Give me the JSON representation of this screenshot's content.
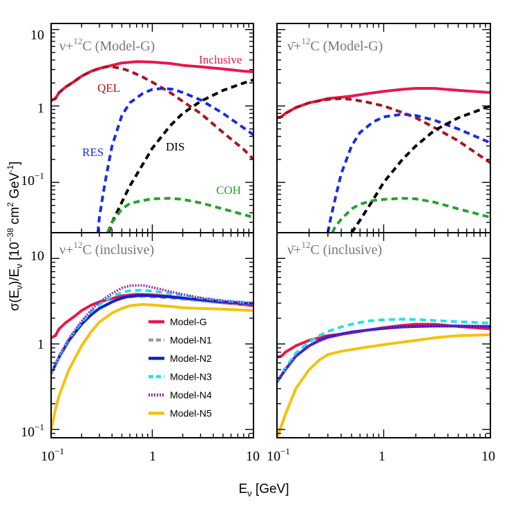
{
  "chart_data": [
    {
      "type": "line",
      "panel": "top-left",
      "title": "ν+¹²C (Model-G)",
      "title_parts": {
        "pre": "ν+",
        "sup": "12",
        "post": "C (Model-G)"
      },
      "xscale": "log",
      "yscale": "log",
      "xlim": [
        0.1,
        10
      ],
      "ylim": [
        0.022,
        12
      ],
      "series": [
        {
          "name": "Inclusive",
          "color": "#e8174a",
          "dash": "solid",
          "x": [
            0.1,
            0.11,
            0.12,
            0.14,
            0.17,
            0.2,
            0.25,
            0.3,
            0.4,
            0.5,
            0.7,
            1,
            1.5,
            2,
            3,
            5,
            8,
            10
          ],
          "y": [
            1.18,
            1.25,
            1.5,
            1.78,
            2.1,
            2.45,
            2.85,
            3.1,
            3.4,
            3.65,
            3.8,
            3.75,
            3.6,
            3.4,
            3.25,
            3.05,
            2.85,
            2.8
          ]
        },
        {
          "name": "QEL",
          "color": "#a8161a",
          "dash": "dash",
          "x": [
            0.1,
            0.11,
            0.12,
            0.14,
            0.17,
            0.2,
            0.25,
            0.3,
            0.35,
            0.4,
            0.5,
            0.6,
            0.8,
            1,
            1.5,
            2,
            3,
            5,
            8,
            10
          ],
          "y": [
            1.18,
            1.25,
            1.5,
            1.78,
            2.1,
            2.45,
            2.85,
            3.1,
            3.25,
            3.25,
            3.1,
            2.85,
            2.4,
            2.05,
            1.5,
            1.15,
            0.8,
            0.45,
            0.27,
            0.2
          ]
        },
        {
          "name": "RES",
          "color": "#1a2be8",
          "dash": "dash",
          "x": [
            0.29,
            0.3,
            0.32,
            0.35,
            0.4,
            0.5,
            0.6,
            0.8,
            1,
            1.3,
            1.6,
            2,
            3,
            5,
            10
          ],
          "y": [
            0.022,
            0.035,
            0.06,
            0.12,
            0.3,
            0.75,
            1.1,
            1.45,
            1.65,
            1.7,
            1.65,
            1.5,
            1.2,
            0.8,
            0.42
          ]
        },
        {
          "name": "DIS",
          "color": "#000000",
          "dash": "dash",
          "x": [
            0.37,
            0.4,
            0.5,
            0.6,
            0.8,
            1,
            1.5,
            2,
            3,
            5,
            8,
            10
          ],
          "y": [
            0.022,
            0.03,
            0.055,
            0.09,
            0.17,
            0.28,
            0.55,
            0.8,
            1.15,
            1.6,
            2.0,
            2.2
          ]
        },
        {
          "name": "COH",
          "color": "#26a22e",
          "dash": "dash",
          "x": [
            0.36,
            0.4,
            0.5,
            0.6,
            0.8,
            1,
            1.5,
            2,
            3,
            5,
            10
          ],
          "y": [
            0.022,
            0.03,
            0.045,
            0.053,
            0.058,
            0.061,
            0.062,
            0.06,
            0.054,
            0.045,
            0.035
          ]
        }
      ],
      "annotations": [
        {
          "text": "Inclusive",
          "color": "#e8174a"
        },
        {
          "text": "QEL",
          "color": "#a8161a"
        },
        {
          "text": "RES",
          "color": "#1a2be8"
        },
        {
          "text": "DIS",
          "color": "#000000"
        },
        {
          "text": "COH",
          "color": "#26a22e"
        }
      ]
    },
    {
      "type": "line",
      "panel": "top-right",
      "title": "ν̄+¹²C (Model-G)",
      "title_parts": {
        "pre": "ν̄+",
        "sup": "12",
        "post": "C (Model-G)"
      },
      "xscale": "log",
      "yscale": "log",
      "xlim": [
        0.1,
        10
      ],
      "ylim": [
        0.022,
        12
      ],
      "series": [
        {
          "name": "Inclusive",
          "color": "#e8174a",
          "dash": "solid",
          "x": [
            0.1,
            0.11,
            0.12,
            0.15,
            0.2,
            0.3,
            0.4,
            0.5,
            0.7,
            1,
            1.5,
            2,
            3,
            5,
            10
          ],
          "y": [
            0.7,
            0.72,
            0.8,
            0.95,
            1.1,
            1.25,
            1.3,
            1.35,
            1.45,
            1.55,
            1.65,
            1.7,
            1.7,
            1.6,
            1.5
          ]
        },
        {
          "name": "QEL",
          "color": "#a8161a",
          "dash": "dash",
          "x": [
            0.1,
            0.11,
            0.12,
            0.15,
            0.2,
            0.3,
            0.4,
            0.5,
            0.7,
            1,
            1.5,
            2,
            3,
            5,
            10
          ],
          "y": [
            0.7,
            0.72,
            0.8,
            0.95,
            1.1,
            1.22,
            1.25,
            1.22,
            1.12,
            1.0,
            0.82,
            0.7,
            0.52,
            0.35,
            0.18
          ]
        },
        {
          "name": "RES",
          "color": "#1a2be8",
          "dash": "dash",
          "x": [
            0.3,
            0.32,
            0.35,
            0.4,
            0.5,
            0.6,
            0.8,
            1,
            1.5,
            2,
            3,
            5,
            10
          ],
          "y": [
            0.022,
            0.035,
            0.06,
            0.13,
            0.3,
            0.45,
            0.62,
            0.72,
            0.78,
            0.75,
            0.65,
            0.5,
            0.33
          ]
        },
        {
          "name": "DIS",
          "color": "#000000",
          "dash": "dash",
          "x": [
            0.5,
            0.6,
            0.8,
            1,
            1.5,
            2,
            3,
            5,
            10
          ],
          "y": [
            0.022,
            0.032,
            0.06,
            0.1,
            0.2,
            0.3,
            0.48,
            0.7,
            1.0
          ]
        },
        {
          "name": "COH",
          "color": "#26a22e",
          "dash": "dash",
          "x": [
            0.33,
            0.35,
            0.4,
            0.5,
            0.6,
            0.8,
            1,
            1.5,
            2,
            3,
            5,
            10
          ],
          "y": [
            0.022,
            0.026,
            0.033,
            0.045,
            0.052,
            0.058,
            0.06,
            0.062,
            0.061,
            0.055,
            0.045,
            0.035
          ]
        }
      ]
    },
    {
      "type": "line",
      "panel": "bottom-left",
      "title": "ν+¹²C (inclusive)",
      "title_parts": {
        "pre": "ν+",
        "sup": "12",
        "post": "C (inclusive)"
      },
      "xscale": "log",
      "yscale": "log",
      "xlim": [
        0.1,
        10
      ],
      "ylim": [
        0.08,
        20
      ],
      "ylabel": "σ(Eν)/Eν [10⁻³⁸ cm² GeV⁻¹]",
      "series": [
        {
          "name": "Model-G",
          "color": "#e8174a",
          "dash": "solid",
          "x": [
            0.1,
            0.11,
            0.12,
            0.14,
            0.17,
            0.2,
            0.25,
            0.3,
            0.4,
            0.5,
            0.7,
            1,
            1.5,
            2,
            3,
            5,
            10
          ],
          "y": [
            1.18,
            1.25,
            1.5,
            1.78,
            2.1,
            2.45,
            2.85,
            3.1,
            3.4,
            3.65,
            3.8,
            3.75,
            3.6,
            3.4,
            3.25,
            3.05,
            2.8
          ]
        },
        {
          "name": "Model-N1",
          "color": "#9a9a9a",
          "dash": "dash",
          "x": [
            0.1,
            0.12,
            0.15,
            0.2,
            0.25,
            0.3,
            0.4,
            0.5,
            0.6,
            0.8,
            1,
            1.5,
            2,
            3,
            5,
            10
          ],
          "y": [
            0.45,
            0.7,
            1.1,
            1.7,
            2.2,
            2.6,
            3.1,
            3.4,
            3.55,
            3.6,
            3.55,
            3.45,
            3.35,
            3.2,
            3.0,
            2.9
          ]
        },
        {
          "name": "Model-N2",
          "color": "#0a22d8",
          "dash": "solid",
          "x": [
            0.1,
            0.12,
            0.15,
            0.2,
            0.25,
            0.3,
            0.4,
            0.5,
            0.6,
            0.8,
            1,
            1.5,
            2,
            3,
            5,
            10
          ],
          "y": [
            0.45,
            0.7,
            1.1,
            1.7,
            2.2,
            2.6,
            3.1,
            3.45,
            3.6,
            3.7,
            3.65,
            3.55,
            3.45,
            3.3,
            3.1,
            2.95
          ]
        },
        {
          "name": "Model-N3",
          "color": "#25e0ec",
          "dash": "dash",
          "x": [
            0.1,
            0.12,
            0.15,
            0.2,
            0.25,
            0.3,
            0.4,
            0.5,
            0.6,
            0.8,
            1,
            1.5,
            2,
            3,
            5,
            10
          ],
          "y": [
            0.45,
            0.72,
            1.15,
            1.8,
            2.4,
            2.9,
            3.6,
            4.0,
            4.2,
            4.25,
            4.15,
            3.9,
            3.7,
            3.45,
            3.2,
            3.0
          ]
        },
        {
          "name": "Model-N4",
          "color": "#a020a8",
          "dash": "dot",
          "x": [
            0.1,
            0.12,
            0.15,
            0.2,
            0.25,
            0.3,
            0.4,
            0.5,
            0.6,
            0.8,
            1,
            1.5,
            2,
            3,
            5,
            10
          ],
          "y": [
            0.45,
            0.72,
            1.15,
            1.85,
            2.5,
            3.1,
            3.9,
            4.5,
            4.8,
            4.85,
            4.6,
            4.1,
            3.8,
            3.45,
            3.2,
            3.0
          ]
        },
        {
          "name": "Model-N5",
          "color": "#f5c10b",
          "dash": "solid",
          "x": [
            0.1,
            0.11,
            0.12,
            0.15,
            0.2,
            0.25,
            0.3,
            0.4,
            0.5,
            0.6,
            0.8,
            1,
            1.5,
            2,
            3,
            5,
            10
          ],
          "y": [
            0.1,
            0.17,
            0.25,
            0.5,
            0.95,
            1.4,
            1.8,
            2.3,
            2.6,
            2.8,
            2.9,
            2.85,
            2.75,
            2.65,
            2.6,
            2.55,
            2.45
          ]
        }
      ],
      "legend": [
        "Model-G",
        "Model-N1",
        "Model-N2",
        "Model-N3",
        "Model-N4",
        "Model-N5"
      ]
    },
    {
      "type": "line",
      "panel": "bottom-right",
      "title": "ν̄+¹²C (inclusive)",
      "title_parts": {
        "pre": "ν̄+",
        "sup": "12",
        "post": "C (inclusive)"
      },
      "xscale": "log",
      "yscale": "log",
      "xlim": [
        0.1,
        10
      ],
      "ylim": [
        0.08,
        20
      ],
      "xlabel": "Eν [GeV]",
      "series": [
        {
          "name": "Model-G",
          "color": "#e8174a",
          "dash": "solid",
          "x": [
            0.1,
            0.11,
            0.12,
            0.15,
            0.2,
            0.3,
            0.4,
            0.5,
            0.7,
            1,
            1.5,
            2,
            3,
            5,
            10
          ],
          "y": [
            0.7,
            0.72,
            0.8,
            0.95,
            1.1,
            1.25,
            1.3,
            1.35,
            1.45,
            1.55,
            1.65,
            1.7,
            1.7,
            1.6,
            1.5
          ]
        },
        {
          "name": "Model-N1",
          "color": "#9a9a9a",
          "dash": "dash",
          "x": [
            0.1,
            0.12,
            0.15,
            0.2,
            0.25,
            0.3,
            0.4,
            0.5,
            0.7,
            1,
            1.5,
            2,
            3,
            5,
            10
          ],
          "y": [
            0.36,
            0.5,
            0.72,
            0.95,
            1.1,
            1.2,
            1.3,
            1.38,
            1.45,
            1.52,
            1.58,
            1.6,
            1.62,
            1.62,
            1.6
          ]
        },
        {
          "name": "Model-N2",
          "color": "#0a22d8",
          "dash": "solid",
          "x": [
            0.1,
            0.12,
            0.15,
            0.2,
            0.25,
            0.3,
            0.4,
            0.5,
            0.7,
            1,
            1.5,
            2,
            3,
            5,
            10
          ],
          "y": [
            0.36,
            0.5,
            0.72,
            0.95,
            1.1,
            1.2,
            1.3,
            1.38,
            1.45,
            1.52,
            1.58,
            1.6,
            1.62,
            1.62,
            1.6
          ]
        },
        {
          "name": "Model-N3",
          "color": "#25e0ec",
          "dash": "dash",
          "x": [
            0.1,
            0.12,
            0.15,
            0.2,
            0.25,
            0.3,
            0.4,
            0.5,
            0.7,
            1,
            1.5,
            2,
            3,
            5,
            10
          ],
          "y": [
            0.37,
            0.52,
            0.78,
            1.05,
            1.25,
            1.4,
            1.58,
            1.7,
            1.85,
            1.92,
            1.95,
            1.93,
            1.88,
            1.82,
            1.75
          ]
        },
        {
          "name": "Model-N4",
          "color": "#a020a8",
          "dash": "dot",
          "x": [
            0.1,
            0.12,
            0.15,
            0.2,
            0.25,
            0.3,
            0.4,
            0.5,
            0.7,
            1,
            1.5,
            2,
            3,
            5,
            10
          ],
          "y": [
            0.36,
            0.5,
            0.72,
            0.95,
            1.08,
            1.18,
            1.28,
            1.36,
            1.44,
            1.52,
            1.58,
            1.6,
            1.62,
            1.62,
            1.6
          ]
        },
        {
          "name": "Model-N5",
          "color": "#f5c10b",
          "dash": "solid",
          "x": [
            0.1,
            0.11,
            0.12,
            0.15,
            0.2,
            0.25,
            0.3,
            0.4,
            0.5,
            0.7,
            1,
            1.5,
            2,
            3,
            5,
            10
          ],
          "y": [
            0.08,
            0.11,
            0.15,
            0.3,
            0.5,
            0.65,
            0.75,
            0.82,
            0.86,
            0.92,
            0.98,
            1.05,
            1.1,
            1.18,
            1.25,
            1.28
          ]
        }
      ]
    }
  ],
  "axes": {
    "x_ticks": [
      "10",
      "1",
      "10"
    ],
    "x_tick_first": {
      "base": "10",
      "exp": "−1"
    },
    "y_ticks_top": [
      "10",
      "1"
    ],
    "y_tick_minus1": {
      "base": "10",
      "exp": "−1"
    },
    "ylabel": {
      "pre": "σ(E",
      "sub1": "ν",
      "mid": ")/E",
      "sub2": "ν",
      "post1": " [10",
      "sup1": "−38",
      "post2": " cm",
      "sup2": "2",
      "post3": " GeV",
      "sup3": "-1",
      "post4": "]"
    },
    "xlabel": {
      "pre": "E",
      "sub": "ν",
      "post": " [GeV]"
    }
  }
}
